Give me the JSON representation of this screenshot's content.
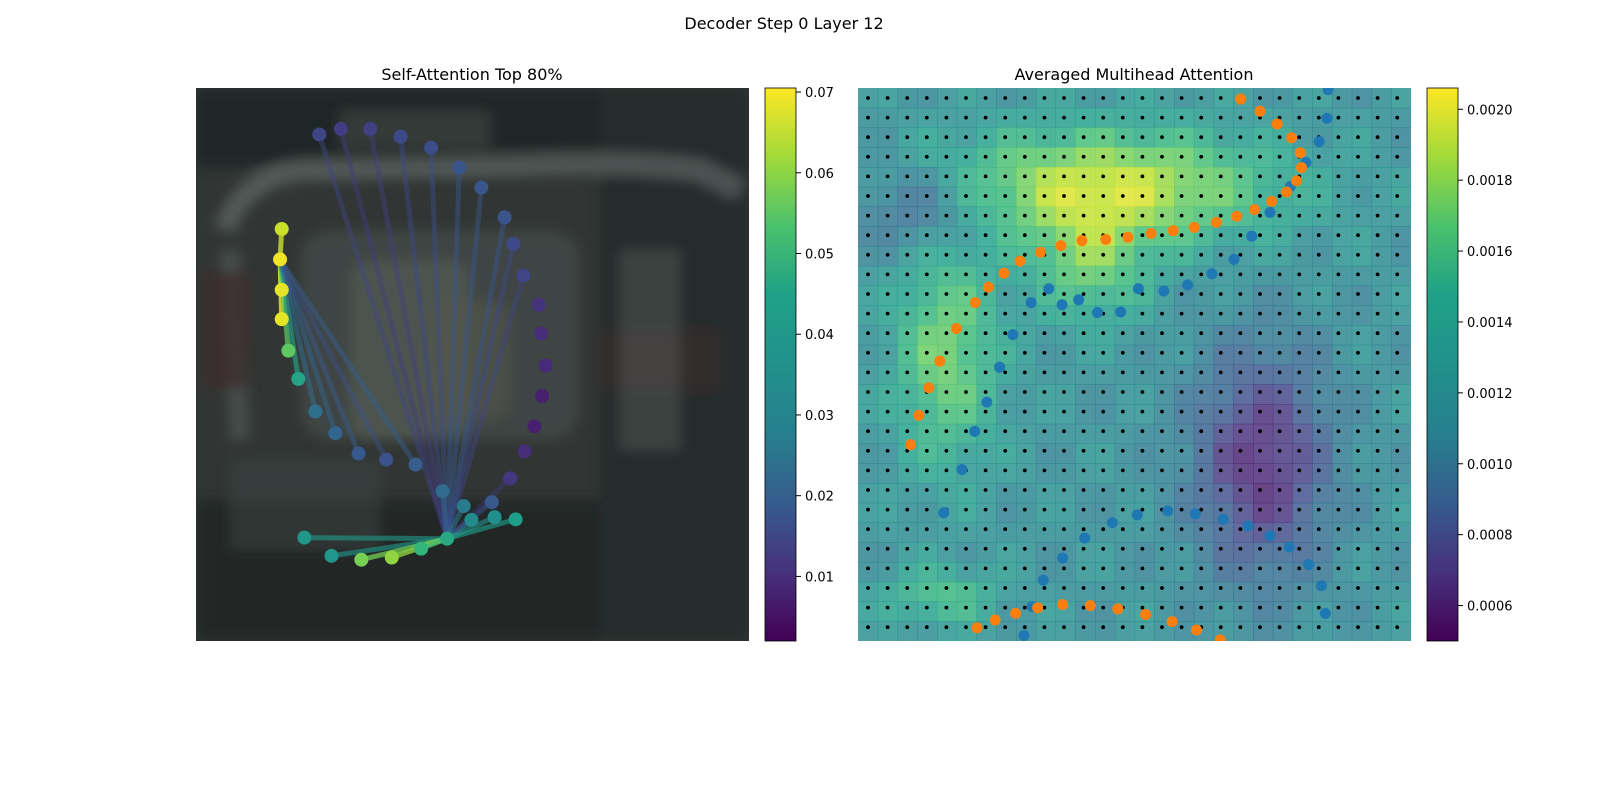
{
  "figure": {
    "title": "Decoder Step 0 Layer 12"
  },
  "chart_data": [
    {
      "type": "scatter",
      "title": "Self-Attention Top 80%",
      "xlim": [
        0,
        1
      ],
      "ylim": [
        0,
        1
      ],
      "colormap": "viridis",
      "colorbar": {
        "range": [
          0.002,
          0.0705
        ],
        "ticks": [
          0.01,
          0.02,
          0.03,
          0.04,
          0.05,
          0.06,
          0.07
        ],
        "tick_labels": [
          "0.01",
          "0.02",
          "0.03",
          "0.04",
          "0.05",
          "0.06",
          "0.07"
        ]
      },
      "query_point_index": 5,
      "points": [
        {
          "x": 0.196,
          "y": 0.813,
          "v": 0.038
        },
        {
          "x": 0.245,
          "y": 0.846,
          "v": 0.038
        },
        {
          "x": 0.299,
          "y": 0.853,
          "v": 0.056
        },
        {
          "x": 0.354,
          "y": 0.849,
          "v": 0.059
        },
        {
          "x": 0.407,
          "y": 0.833,
          "v": 0.047
        },
        {
          "x": 0.454,
          "y": 0.815,
          "v": 0.043
        },
        {
          "x": 0.498,
          "y": 0.781,
          "v": 0.035
        },
        {
          "x": 0.535,
          "y": 0.749,
          "v": 0.021
        },
        {
          "x": 0.568,
          "y": 0.706,
          "v": 0.013
        },
        {
          "x": 0.594,
          "y": 0.657,
          "v": 0.011
        },
        {
          "x": 0.612,
          "y": 0.612,
          "v": 0.008
        },
        {
          "x": 0.626,
          "y": 0.557,
          "v": 0.008
        },
        {
          "x": 0.632,
          "y": 0.502,
          "v": 0.01
        },
        {
          "x": 0.624,
          "y": 0.444,
          "v": 0.011
        },
        {
          "x": 0.62,
          "y": 0.392,
          "v": 0.012
        },
        {
          "x": 0.592,
          "y": 0.339,
          "v": 0.016
        },
        {
          "x": 0.574,
          "y": 0.282,
          "v": 0.017
        },
        {
          "x": 0.558,
          "y": 0.234,
          "v": 0.02
        },
        {
          "x": 0.516,
          "y": 0.18,
          "v": 0.02
        },
        {
          "x": 0.476,
          "y": 0.144,
          "v": 0.02
        },
        {
          "x": 0.425,
          "y": 0.108,
          "v": 0.018
        },
        {
          "x": 0.37,
          "y": 0.088,
          "v": 0.017
        },
        {
          "x": 0.315,
          "y": 0.074,
          "v": 0.015
        },
        {
          "x": 0.262,
          "y": 0.074,
          "v": 0.014
        },
        {
          "x": 0.223,
          "y": 0.084,
          "v": 0.016
        },
        {
          "x": 0.155,
          "y": 0.255,
          "v": 0.065
        },
        {
          "x": 0.152,
          "y": 0.31,
          "v": 0.069
        },
        {
          "x": 0.155,
          "y": 0.365,
          "v": 0.068
        },
        {
          "x": 0.155,
          "y": 0.418,
          "v": 0.068
        },
        {
          "x": 0.167,
          "y": 0.475,
          "v": 0.053
        },
        {
          "x": 0.185,
          "y": 0.526,
          "v": 0.042
        },
        {
          "x": 0.216,
          "y": 0.585,
          "v": 0.027
        },
        {
          "x": 0.252,
          "y": 0.624,
          "v": 0.024
        },
        {
          "x": 0.294,
          "y": 0.661,
          "v": 0.021
        },
        {
          "x": 0.344,
          "y": 0.672,
          "v": 0.019
        },
        {
          "x": 0.397,
          "y": 0.681,
          "v": 0.022
        },
        {
          "x": 0.446,
          "y": 0.729,
          "v": 0.026
        },
        {
          "x": 0.484,
          "y": 0.756,
          "v": 0.03
        },
        {
          "x": 0.54,
          "y": 0.776,
          "v": 0.036
        },
        {
          "x": 0.578,
          "y": 0.78,
          "v": 0.04
        }
      ]
    },
    {
      "type": "heatmap",
      "title": "Averaged Multihead Attention",
      "xlim": [
        0,
        1
      ],
      "ylim": [
        0,
        1
      ],
      "colormap": "viridis",
      "colorbar": {
        "range": [
          0.0005,
          0.00206
        ],
        "ticks": [
          0.0006,
          0.0008,
          0.001,
          0.0012,
          0.0014,
          0.0016,
          0.0018,
          0.002
        ],
        "tick_labels": [
          "0.0006",
          "0.0008",
          "0.0010",
          "0.0012",
          "0.0014",
          "0.0016",
          "0.0018",
          "0.0020"
        ]
      },
      "grid": {
        "rows": 28,
        "cols": 28
      },
      "series": [
        {
          "color": "#1f77b4",
          "points": [
            [
              0.155,
              0.768
            ],
            [
              0.188,
              0.69
            ],
            [
              0.211,
              0.621
            ],
            [
              0.233,
              0.568
            ],
            [
              0.256,
              0.505
            ],
            [
              0.28,
              0.446
            ],
            [
              0.313,
              0.388
            ],
            [
              0.345,
              0.363
            ],
            [
              0.369,
              0.392
            ],
            [
              0.399,
              0.383
            ],
            [
              0.433,
              0.406
            ],
            [
              0.475,
              0.405
            ],
            [
              0.507,
              0.363
            ],
            [
              0.553,
              0.367
            ],
            [
              0.596,
              0.356
            ],
            [
              0.64,
              0.336
            ],
            [
              0.68,
              0.31
            ],
            [
              0.712,
              0.268
            ],
            [
              0.745,
              0.225
            ],
            [
              0.782,
              0.178
            ],
            [
              0.81,
              0.135
            ],
            [
              0.834,
              0.097
            ],
            [
              0.848,
              0.055
            ],
            [
              0.85,
              0.003
            ],
            [
              0.845,
              -0.05
            ],
            [
              0.838,
              -0.1
            ],
            [
              0.815,
              -0.138
            ],
            [
              0.78,
              -0.17
            ],
            [
              0.745,
              -0.19
            ],
            [
              0.705,
              -0.208
            ],
            [
              0.66,
              -0.22
            ],
            [
              0.61,
              -0.23
            ],
            [
              0.56,
              -0.235
            ],
            [
              0.505,
              -0.228
            ],
            [
              0.46,
              -0.214
            ],
            [
              0.41,
              -0.186
            ],
            [
              0.37,
              -0.15
            ],
            [
              0.335,
              -0.11
            ],
            [
              0.315,
              -0.062
            ],
            [
              0.3,
              -0.01
            ]
          ]
        },
        {
          "color": "#ff7f0e",
          "points": [
            [
              0.095,
              0.645
            ],
            [
              0.11,
              0.592
            ],
            [
              0.128,
              0.542
            ],
            [
              0.148,
              0.494
            ],
            [
              0.178,
              0.435
            ],
            [
              0.212,
              0.388
            ],
            [
              0.236,
              0.36
            ],
            [
              0.264,
              0.335
            ],
            [
              0.293,
              0.313
            ],
            [
              0.33,
              0.297
            ],
            [
              0.367,
              0.285
            ],
            [
              0.405,
              0.276
            ],
            [
              0.448,
              0.274
            ],
            [
              0.488,
              0.27
            ],
            [
              0.53,
              0.263
            ],
            [
              0.57,
              0.258
            ],
            [
              0.608,
              0.252
            ],
            [
              0.648,
              0.243
            ],
            [
              0.685,
              0.232
            ],
            [
              0.717,
              0.22
            ],
            [
              0.748,
              0.205
            ],
            [
              0.775,
              0.188
            ],
            [
              0.793,
              0.168
            ],
            [
              0.802,
              0.144
            ],
            [
              0.8,
              0.117
            ],
            [
              0.784,
              0.09
            ],
            [
              0.758,
              0.065
            ],
            [
              0.727,
              0.042
            ],
            [
              0.692,
              0.02
            ],
            [
              0.655,
              -0.002
            ],
            [
              0.612,
              -0.02
            ],
            [
              0.568,
              -0.035
            ],
            [
              0.52,
              -0.048
            ],
            [
              0.47,
              -0.058
            ],
            [
              0.42,
              -0.064
            ],
            [
              0.37,
              -0.066
            ],
            [
              0.325,
              -0.06
            ],
            [
              0.285,
              -0.05
            ],
            [
              0.248,
              -0.038
            ],
            [
              0.215,
              -0.024
            ]
          ]
        }
      ]
    }
  ]
}
